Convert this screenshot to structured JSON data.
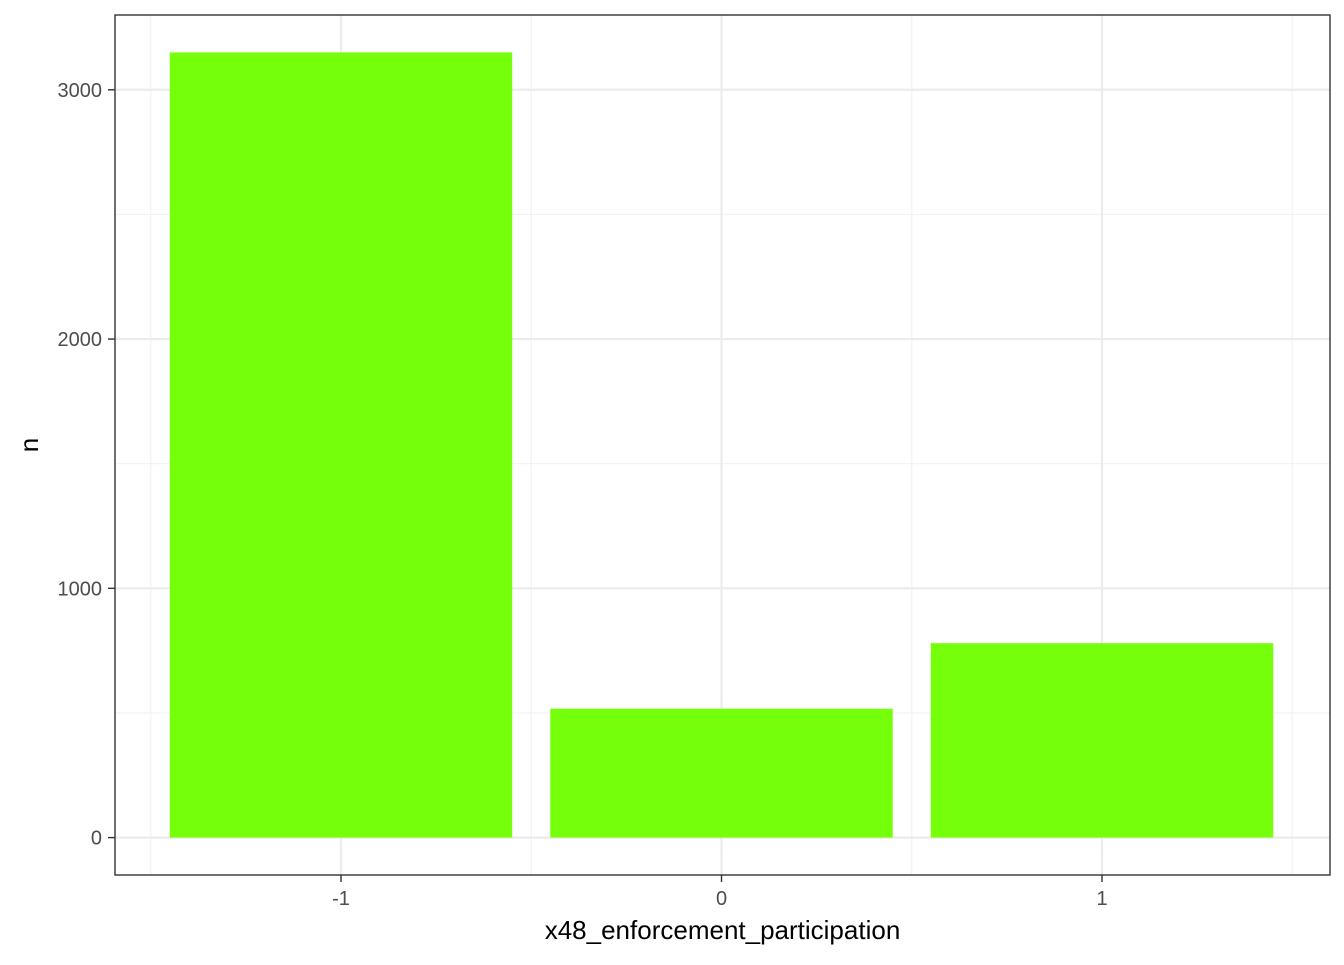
{
  "chart_data": {
    "type": "bar",
    "categories": [
      "-1",
      "0",
      "1"
    ],
    "values": [
      3150,
      517,
      780
    ],
    "title": "",
    "xlabel": "x48_enforcement_participation",
    "ylabel": "n",
    "ylim": [
      -150,
      3300
    ],
    "yticks": [
      0,
      1000,
      2000,
      3000
    ],
    "ytick_labels": [
      "0",
      "1000",
      "2000",
      "3000"
    ],
    "grid": true,
    "legend": "none",
    "colors": {
      "bar": "#76FF0B",
      "panel_border": "#333333",
      "grid_major": "#EBEBEB",
      "grid_minor": "#F2F2F2",
      "tick_text": "#4D4D4D",
      "axis_title": "#000000"
    }
  }
}
